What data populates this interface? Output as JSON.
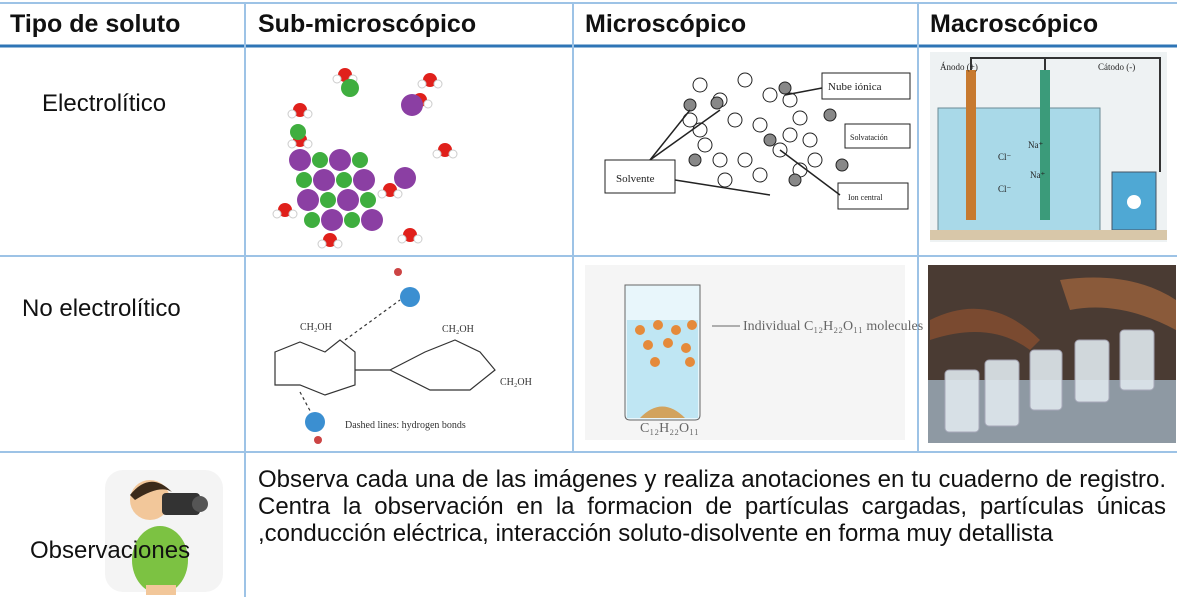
{
  "table": {
    "header": [
      "Tipo de soluto",
      "Sub-microscópico",
      "Microscópico",
      "Macroscópico"
    ],
    "rows": [
      {
        "label": "Electrolítico"
      },
      {
        "label": "No electrolítico"
      }
    ],
    "observations": {
      "label": "Observaciones",
      "text": "Observa cada una de las imágenes y realiza anotaciones en tu cuaderno de registro. Centra la observación en la formacion de partículas cargadas, partículas únicas ,conducción eléctrica, interacción soluto-disolvente en forma muy detallista"
    }
  },
  "images": {
    "micro_electrolyte": {
      "labels": [
        "Nube iónica",
        "Solvatación",
        "Ion central",
        "Solvente"
      ]
    },
    "macro_electrolyte": {
      "labels": [
        "Ánodo (+)",
        "Cátodo (-)",
        "Na⁺",
        "Cl⁻",
        "Na⁺",
        "Cl⁻"
      ]
    },
    "sub_non_electrolyte": {
      "labels": [
        "CH₂OH",
        "CH₂OH",
        "CH₂OH",
        "Dashed lines: hydrogen bonds"
      ]
    },
    "micro_non_electrolyte": {
      "labels": [
        "Individual C₁₂H₂₂O₁₁ molecules",
        "C₁₂H₂₂O₁₁"
      ]
    }
  }
}
